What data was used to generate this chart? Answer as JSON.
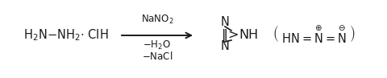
{
  "bg_color": "#ffffff",
  "figsize": [
    4.8,
    0.97
  ],
  "dpi": 100,
  "font_size_main": 10.5,
  "font_size_arrow_label": 8.5,
  "text_color": "#1a1a1a"
}
